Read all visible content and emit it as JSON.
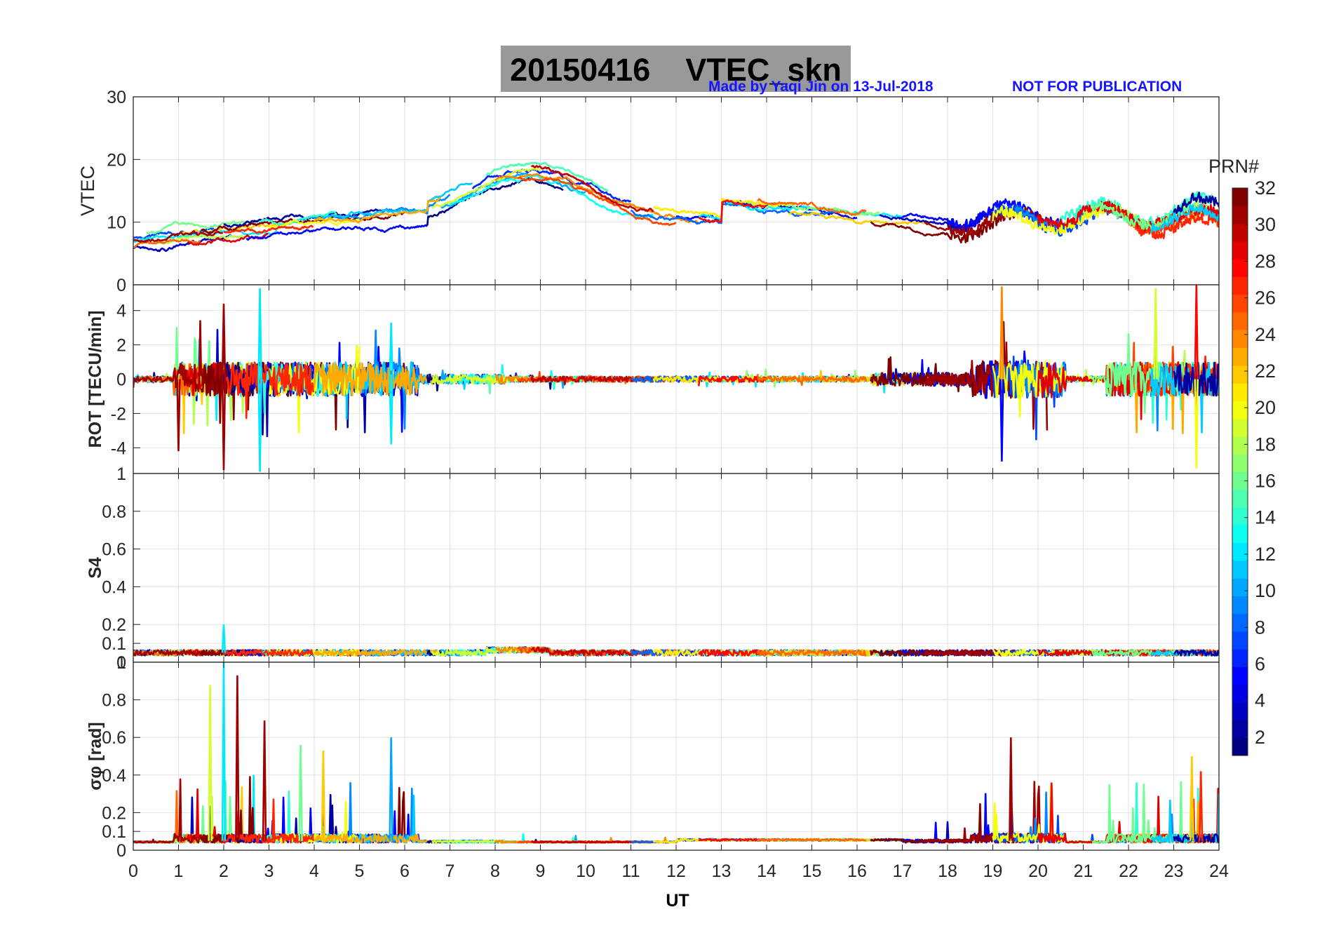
{
  "title": {
    "date": "20150416",
    "label": "VTEC_skn"
  },
  "credits": {
    "author": "Made by Yaqi Jin on 13-Jul-2018",
    "notice": "NOT FOR PUBLICATION"
  },
  "colors": {
    "title_box": "#999999",
    "credit_text": "#1515ff",
    "grid": "#e2e2e2"
  },
  "chart_data": {
    "type": "line",
    "x": {
      "label": "UT",
      "range": [
        0,
        24
      ],
      "ticks": [
        "0",
        "1",
        "2",
        "3",
        "4",
        "5",
        "6",
        "7",
        "8",
        "9",
        "10",
        "11",
        "12",
        "13",
        "14",
        "15",
        "16",
        "17",
        "18",
        "19",
        "20",
        "21",
        "22",
        "23",
        "24"
      ]
    },
    "panels": [
      {
        "id": "vtec",
        "ylabel": "VTEC",
        "ylim": [
          0,
          30
        ],
        "yticks": [
          "0",
          "10",
          "20",
          "30"
        ],
        "description": "Vertical TEC per satellite, ~8-14 TECU overnight, daytime peak ~17-22 TECU near 8-9 UT"
      },
      {
        "id": "rot",
        "ylabel": "ROT [TECU/min]",
        "ylim": [
          -5.5,
          5.5
        ],
        "yticks": [
          "-4",
          "-2",
          "0",
          "2",
          "4"
        ],
        "description": "Rate of TEC, fluctuations up to about ±5 between 1-6 UT and 19-24 UT"
      },
      {
        "id": "s4",
        "ylabel": "S4",
        "ylim": [
          0,
          1
        ],
        "yticks": [
          "0",
          "0.1",
          "0.2",
          "0.4",
          "0.6",
          "0.8",
          "1"
        ],
        "description": "Amplitude scintillation index, mostly 0.03-0.09, single spike 0.2 at 2 UT"
      },
      {
        "id": "sigphi",
        "ylabel": "σφ [rad]",
        "ylim": [
          0,
          1
        ],
        "yticks": [
          "0",
          "0.1",
          "0.2",
          "0.4",
          "0.6",
          "0.8",
          "1"
        ],
        "description": "Phase scintillation index, spikes to ~0.9 between 1.5-6 UT, ~0.6 at 19.4 UT, ~0.5 at 23.5 UT"
      }
    ],
    "colorbar": {
      "label": "PRN#",
      "range": [
        1,
        32
      ],
      "ticks": [
        "2",
        "4",
        "6",
        "8",
        "10",
        "12",
        "14",
        "16",
        "18",
        "20",
        "22",
        "24",
        "26",
        "28",
        "30",
        "32"
      ]
    }
  }
}
